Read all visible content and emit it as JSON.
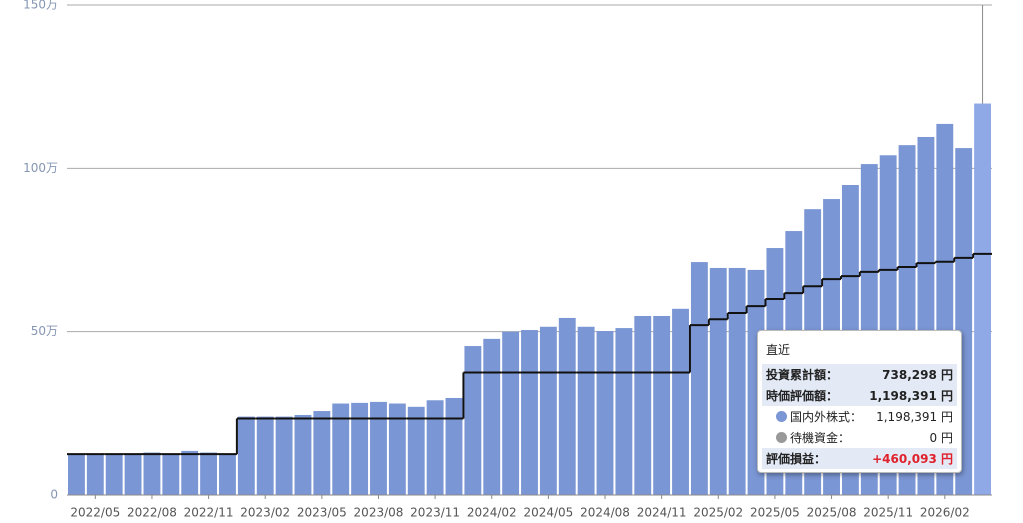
{
  "chart_data": {
    "type": "bar",
    "categories": [
      null,
      "2022/05",
      null,
      null,
      "2022/08",
      null,
      null,
      "2022/11",
      null,
      null,
      "2023/02",
      null,
      null,
      "2023/05",
      null,
      null,
      "2023/08",
      null,
      null,
      "2023/11",
      null,
      null,
      "2024/02",
      null,
      null,
      "2024/05",
      null,
      null,
      "2024/08",
      null,
      null,
      "2024/11",
      null,
      null,
      "2025/02",
      null,
      null,
      "2025/05",
      null,
      null,
      "2025/08",
      null,
      null,
      "2025/11",
      null,
      null,
      "2026/02",
      null,
      null
    ],
    "series": [
      {
        "type": "bar",
        "color": "#7b96d4",
        "highlight_color": "#8fa9e6",
        "values": [
          125000,
          125000,
          125000,
          125000,
          130000,
          125000,
          135000,
          130000,
          125000,
          240000,
          240000,
          240000,
          245000,
          257000,
          280000,
          282000,
          285000,
          280000,
          270000,
          290000,
          297000,
          456000,
          478000,
          500000,
          505000,
          515000,
          542000,
          515000,
          502000,
          511000,
          548000,
          548000,
          570000,
          713000,
          695000,
          695000,
          689000,
          756000,
          808000,
          875000,
          906000,
          949000,
          1013000,
          1040000,
          1071000,
          1096000,
          1136000,
          1062000,
          1198391
        ]
      },
      {
        "type": "step",
        "color": "#111111",
        "values": [
          125000,
          125000,
          125000,
          125000,
          125000,
          125000,
          125000,
          125000,
          125000,
          234000,
          234000,
          234000,
          234000,
          234000,
          234000,
          234000,
          234000,
          234000,
          234000,
          234000,
          234000,
          375000,
          375000,
          375000,
          375000,
          375000,
          375000,
          375000,
          375000,
          375000,
          375000,
          375000,
          375000,
          520000,
          538000,
          557000,
          578000,
          600000,
          618000,
          639000,
          661000,
          670000,
          683000,
          689000,
          698000,
          710000,
          714000,
          726000,
          738298
        ]
      }
    ],
    "ylim": [
      0,
      1500000
    ],
    "yticks": [
      {
        "value": 0,
        "label": "0"
      },
      {
        "value": 500000,
        "label": "50万"
      },
      {
        "value": 1000000,
        "label": "100万"
      },
      {
        "value": 1500000,
        "label": "150万"
      }
    ],
    "grid": true,
    "tooltip": {
      "title": "直近",
      "rows": [
        {
          "label": "投資累計額：",
          "value": "738,298 円"
        },
        {
          "label": "時価評価額：",
          "value": "1,198,391 円"
        },
        {
          "label": "国内外株式：",
          "value": "1,198,391 円"
        },
        {
          "label": "待機資金：",
          "value": "0 円"
        },
        {
          "label": "評価損益：",
          "value": "+460,093 円"
        }
      ]
    }
  }
}
